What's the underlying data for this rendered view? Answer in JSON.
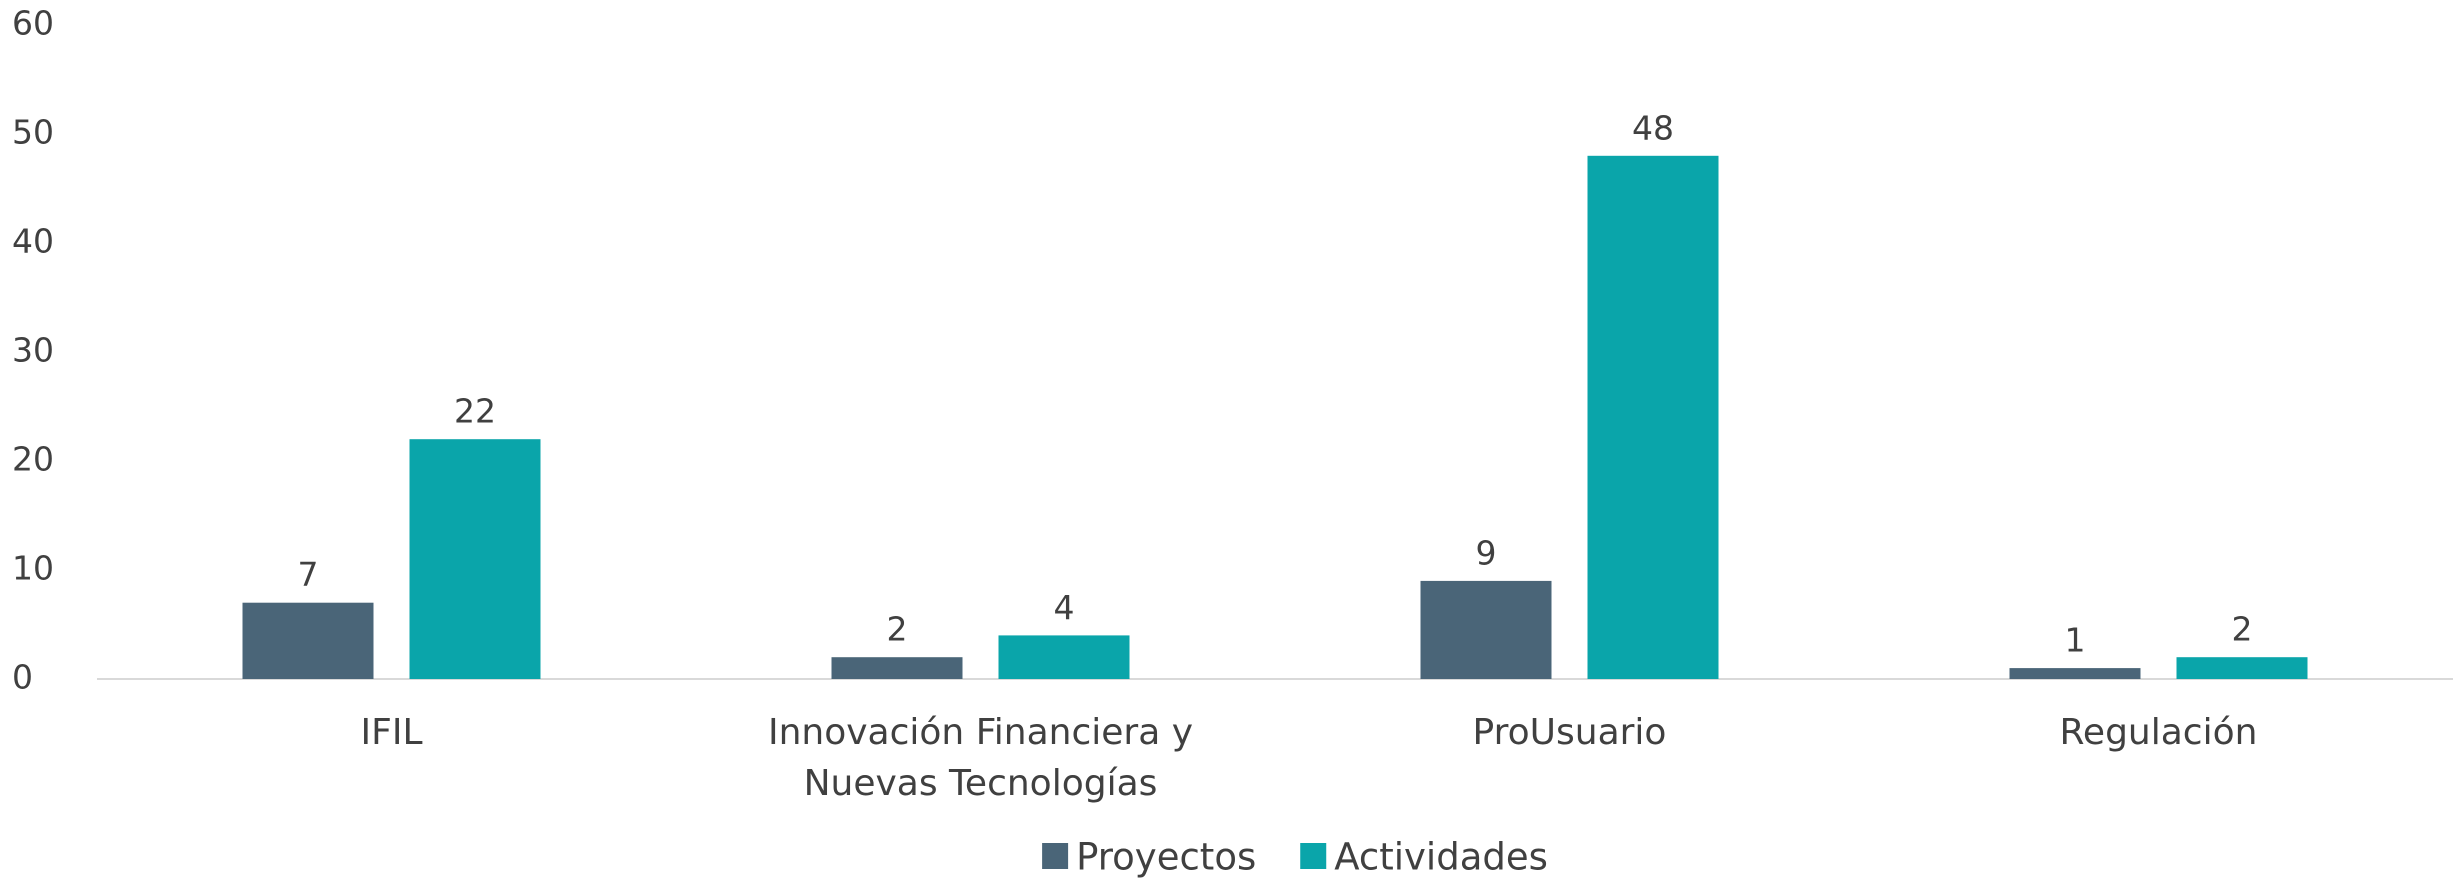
{
  "chart_data": {
    "type": "bar",
    "categories": [
      "IFIL",
      "Innovación Financiera y Nuevas Tecnologías",
      "ProUsuario",
      "Regulación"
    ],
    "series": [
      {
        "name": "Proyectos",
        "color": "#4a6578",
        "values": [
          7,
          2,
          9,
          1
        ]
      },
      {
        "name": "Actividades",
        "color": "#0aa5aa",
        "values": [
          22,
          4,
          48,
          2
        ]
      }
    ],
    "ylim": [
      0,
      60
    ],
    "yticks": [
      0,
      10,
      20,
      30,
      40,
      50,
      60
    ],
    "grid": false,
    "legend": "bottom"
  }
}
